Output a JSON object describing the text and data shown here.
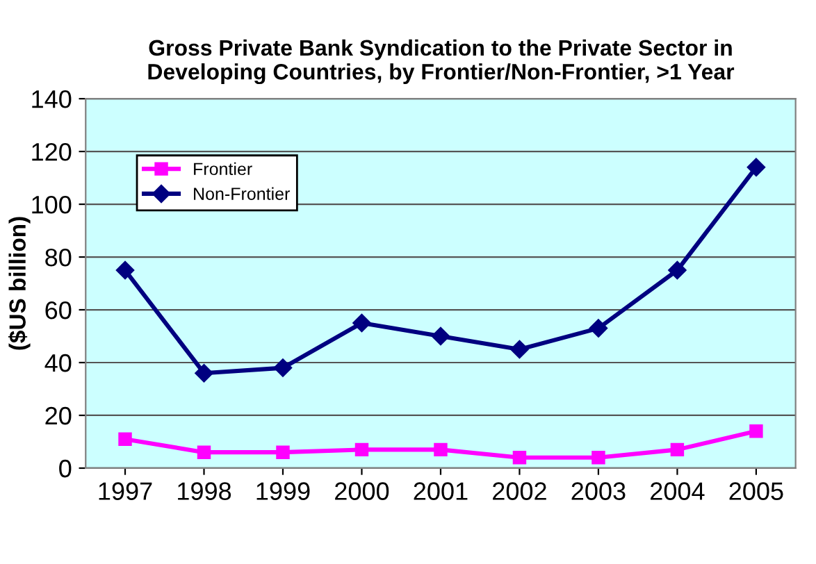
{
  "chart_data": {
    "type": "line",
    "title": "Gross Private Bank Syndication to the Private Sector in\nDeveloping Countries, by Frontier/Non-Frontier, >1 Year",
    "ylabel": "($US billion)",
    "categories": [
      "1997",
      "1998",
      "1999",
      "2000",
      "2001",
      "2002",
      "2003",
      "2004",
      "2005"
    ],
    "series": [
      {
        "name": "Frontier",
        "color": "#ff00ff",
        "marker": "square",
        "values": [
          11,
          6,
          6,
          7,
          7,
          4,
          4,
          7,
          14
        ]
      },
      {
        "name": "Non-Frontier",
        "color": "#000080",
        "marker": "diamond",
        "values": [
          75,
          36,
          38,
          55,
          50,
          45,
          53,
          75,
          114
        ]
      }
    ],
    "ylim": [
      0,
      140
    ],
    "yticks": [
      0,
      20,
      40,
      60,
      80,
      100,
      120,
      140
    ],
    "grid": "y",
    "legend": "top left"
  }
}
